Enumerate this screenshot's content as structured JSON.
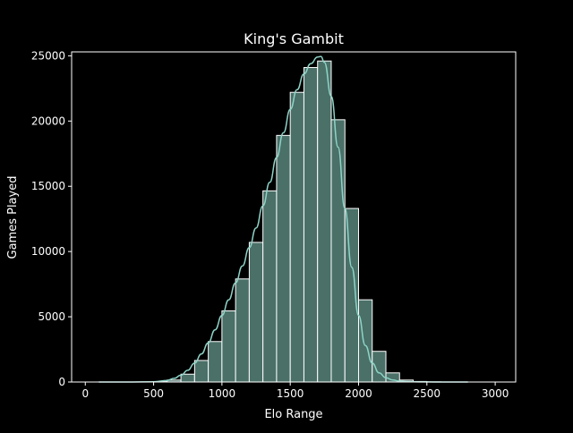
{
  "chart_data": {
    "type": "histogram",
    "title": "King's Gambit",
    "xlabel": "Elo Range",
    "ylabel": "Games Played",
    "xlim": [
      -100,
      3150
    ],
    "ylim": [
      0,
      25300
    ],
    "xticks": [
      0,
      500,
      1000,
      1500,
      2000,
      2500,
      3000
    ],
    "yticks": [
      0,
      5000,
      10000,
      15000,
      20000,
      25000
    ],
    "bin_width": 100,
    "bins": [
      {
        "start": 100,
        "value": 0
      },
      {
        "start": 200,
        "value": 0
      },
      {
        "start": 300,
        "value": 0
      },
      {
        "start": 400,
        "value": 0
      },
      {
        "start": 500,
        "value": 30
      },
      {
        "start": 600,
        "value": 150
      },
      {
        "start": 700,
        "value": 600
      },
      {
        "start": 800,
        "value": 1650
      },
      {
        "start": 900,
        "value": 3100
      },
      {
        "start": 1000,
        "value": 5450
      },
      {
        "start": 1100,
        "value": 7900
      },
      {
        "start": 1200,
        "value": 10700
      },
      {
        "start": 1300,
        "value": 14650
      },
      {
        "start": 1400,
        "value": 18900
      },
      {
        "start": 1500,
        "value": 22200
      },
      {
        "start": 1600,
        "value": 24100
      },
      {
        "start": 1700,
        "value": 24600
      },
      {
        "start": 1800,
        "value": 20100
      },
      {
        "start": 1900,
        "value": 13300
      },
      {
        "start": 2000,
        "value": 6300
      },
      {
        "start": 2100,
        "value": 2350
      },
      {
        "start": 2200,
        "value": 700
      },
      {
        "start": 2300,
        "value": 150
      },
      {
        "start": 2400,
        "value": 40
      },
      {
        "start": 2500,
        "value": 10
      },
      {
        "start": 2600,
        "value": 0
      },
      {
        "start": 2700,
        "value": 0
      },
      {
        "start": 2800,
        "value": 0
      },
      {
        "start": 2900,
        "value": 0
      }
    ],
    "kde": {
      "x": [
        100,
        300,
        500,
        600,
        650,
        700,
        750,
        800,
        850,
        900,
        950,
        1000,
        1050,
        1100,
        1150,
        1200,
        1250,
        1300,
        1350,
        1400,
        1450,
        1500,
        1550,
        1600,
        1650,
        1700,
        1725,
        1750,
        1800,
        1850,
        1900,
        1950,
        2000,
        2050,
        2100,
        2150,
        2200,
        2250,
        2300,
        2350,
        2400,
        2500,
        2600,
        2800
      ],
      "y": [
        0,
        0,
        20,
        120,
        280,
        520,
        900,
        1450,
        2150,
        3000,
        4000,
        5100,
        6300,
        7600,
        8900,
        10300,
        11800,
        13500,
        15300,
        17200,
        19100,
        20900,
        22400,
        23600,
        24400,
        24900,
        24950,
        24500,
        21900,
        18000,
        13300,
        8800,
        5100,
        2800,
        1450,
        700,
        330,
        150,
        70,
        30,
        15,
        5,
        0,
        0
      ]
    },
    "colors": {
      "background": "#000000",
      "bar_fill": "#4a7068",
      "bar_edge": "#ffffff",
      "kde_line": "#8dd3c7",
      "axes": "#ffffff",
      "text": "#ffffff"
    },
    "grid": false,
    "legend": "none"
  }
}
